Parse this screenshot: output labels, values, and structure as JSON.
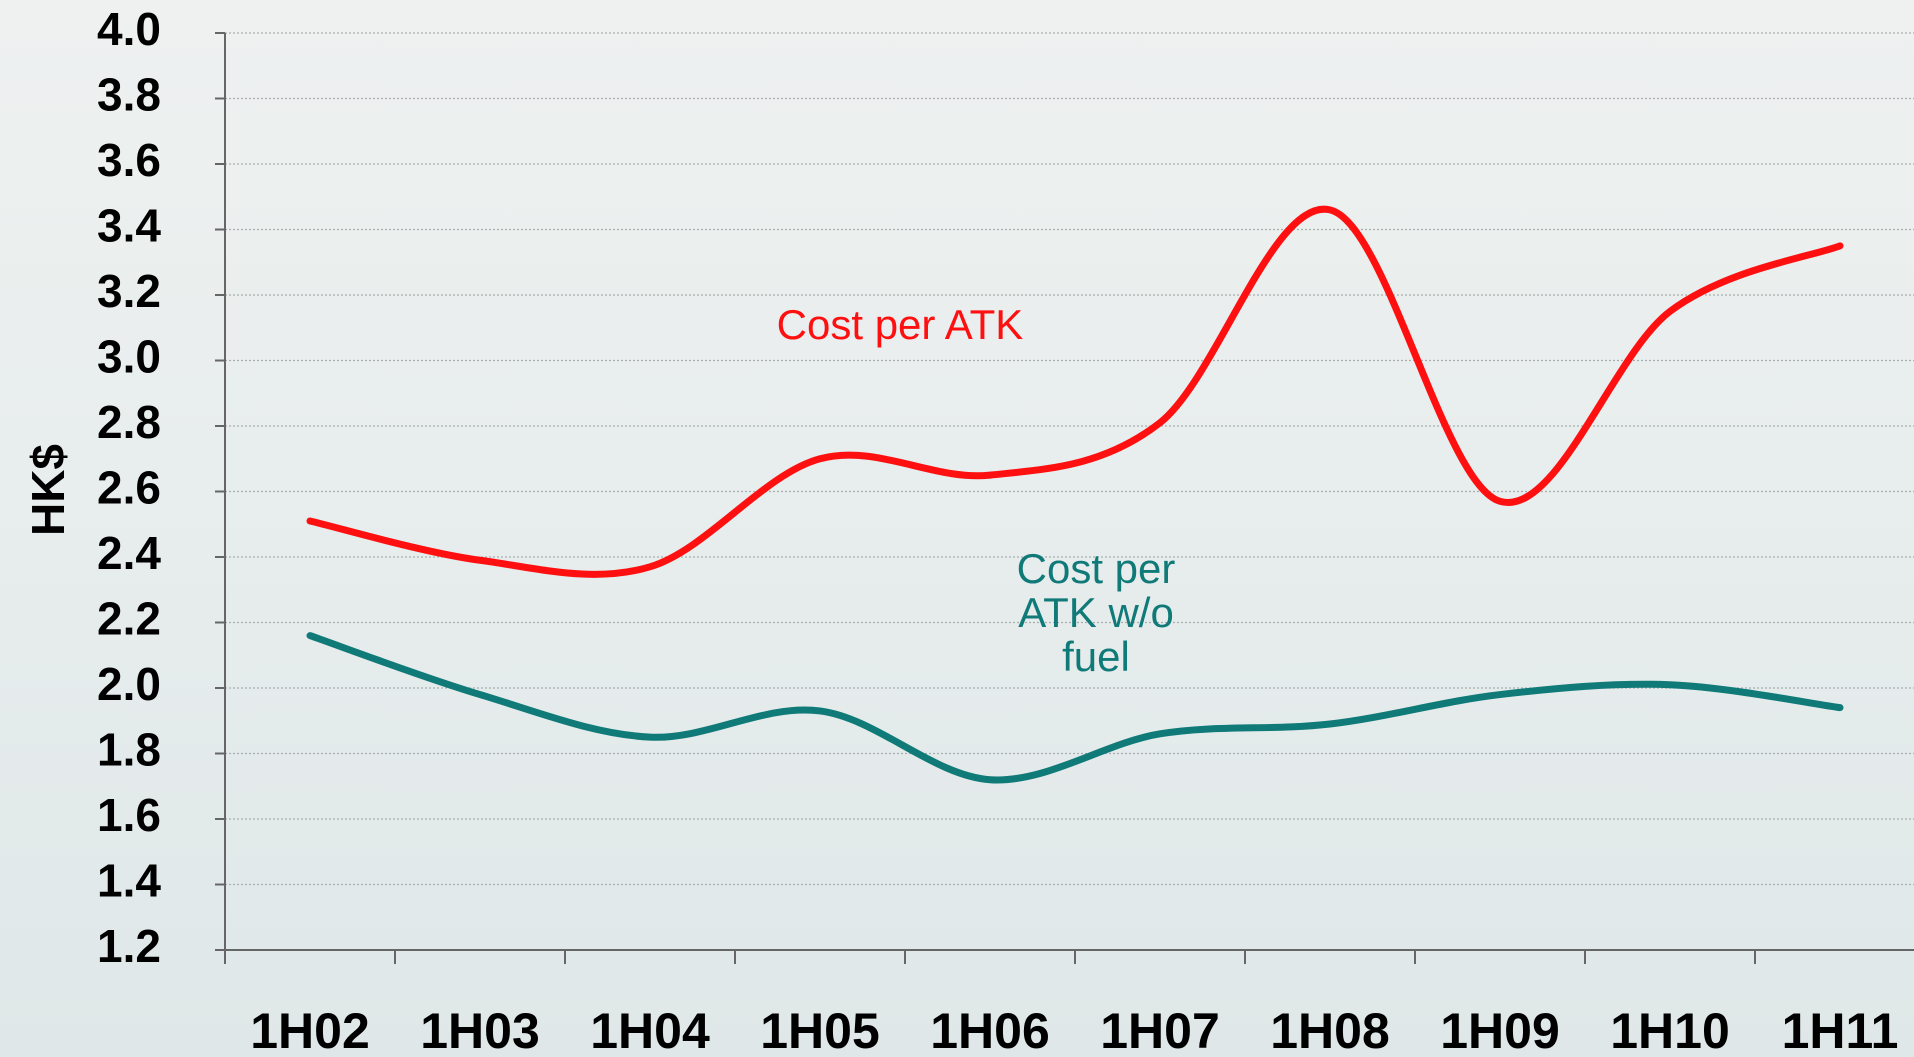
{
  "chart_data": {
    "type": "line",
    "y_label": "HK$",
    "categories": [
      "1H02",
      "1H03",
      "1H04",
      "1H05",
      "1H06",
      "1H07",
      "1H08",
      "1H09",
      "1H10",
      "1H11"
    ],
    "series": [
      {
        "name": "Cost per ATK",
        "color": "#ff1010",
        "values": [
          2.51,
          2.39,
          2.37,
          2.7,
          2.65,
          2.81,
          3.46,
          2.57,
          3.15,
          3.35
        ]
      },
      {
        "name": "Cost per ATK w/o fuel",
        "color": "#0f7a78",
        "values": [
          2.16,
          1.98,
          1.85,
          1.93,
          1.72,
          1.86,
          1.89,
          1.98,
          2.01,
          1.94
        ]
      }
    ],
    "ylim": [
      1.2,
      4.0
    ],
    "yticks": [
      1.2,
      1.4,
      1.6,
      1.8,
      {
        "value": 2.0,
        "label": "2.0"
      },
      2.2,
      2.4,
      2.6,
      2.8,
      {
        "value": 3.0,
        "label": "3.0"
      },
      3.2,
      3.4,
      3.6,
      3.8,
      {
        "value": 4.0,
        "label": "4.0"
      }
    ],
    "grid": true
  }
}
